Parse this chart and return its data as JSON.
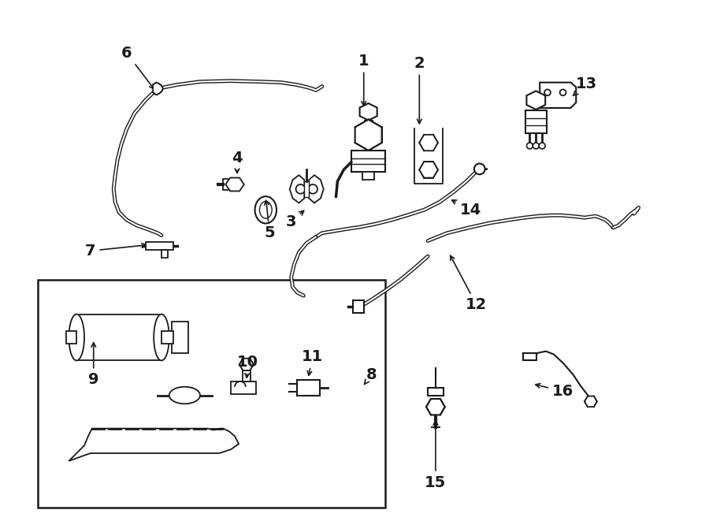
{
  "bg_color": "#ffffff",
  "line_color": "#1a1a1a",
  "figsize": [
    9.0,
    6.61
  ],
  "dpi": 100,
  "border_padding": 10
}
